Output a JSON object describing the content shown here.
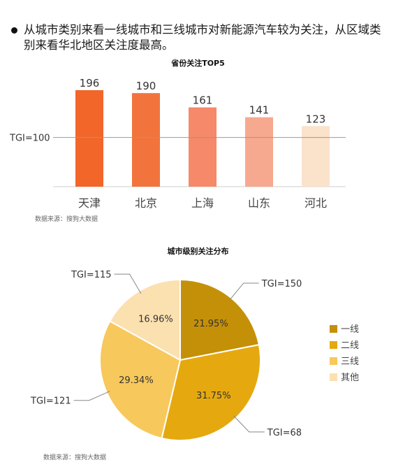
{
  "headline": "从城市类别来看一线城市和三线城市对新能源汽车较为关注，从区域类别来看华北地区关注度最高。",
  "chart_data": [
    {
      "type": "bar",
      "title": "省份关注TOP5",
      "categories": [
        "天津",
        "北京",
        "上海",
        "山东",
        "河北"
      ],
      "values": [
        196,
        190,
        161,
        141,
        123
      ],
      "colors": [
        "#f2662a",
        "#f3733c",
        "#f5896a",
        "#f7a98f",
        "#fbe2cb"
      ],
      "reference_line": {
        "label": "TGI=100",
        "value": 100
      },
      "ylim": [
        0,
        230
      ],
      "source": "数据来源：搜狗大数据"
    },
    {
      "type": "pie",
      "title": "城市级别关注分布",
      "labels": [
        "一线",
        "二线",
        "三线",
        "其他"
      ],
      "values": [
        21.95,
        31.75,
        29.34,
        16.96
      ],
      "value_labels": [
        "21.95%",
        "31.75%",
        "29.34%",
        "16.96%"
      ],
      "annotations": [
        "TGI=150",
        "TGI=68",
        "TGI=121",
        "TGI=115"
      ],
      "colors": [
        "#c49008",
        "#e5a90f",
        "#f7c85b",
        "#fbe0b0"
      ],
      "legend_position": "right",
      "source": "数据来源：搜狗大数据"
    }
  ]
}
